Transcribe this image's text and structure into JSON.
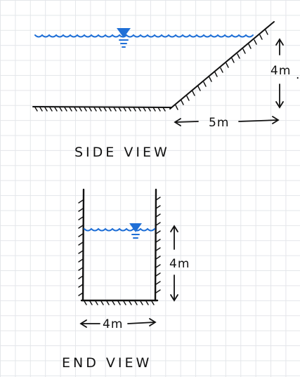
{
  "side_view": {
    "title": "SIDE VIEW",
    "height_label": "4m",
    "width_label": "5m",
    "trailing_mark": "."
  },
  "end_view": {
    "title": "END VIEW",
    "height_label": "4m",
    "width_label": "4m"
  },
  "colors": {
    "water": "#1f6fd6",
    "ink": "#111111",
    "grid": "#e4e6ea"
  }
}
